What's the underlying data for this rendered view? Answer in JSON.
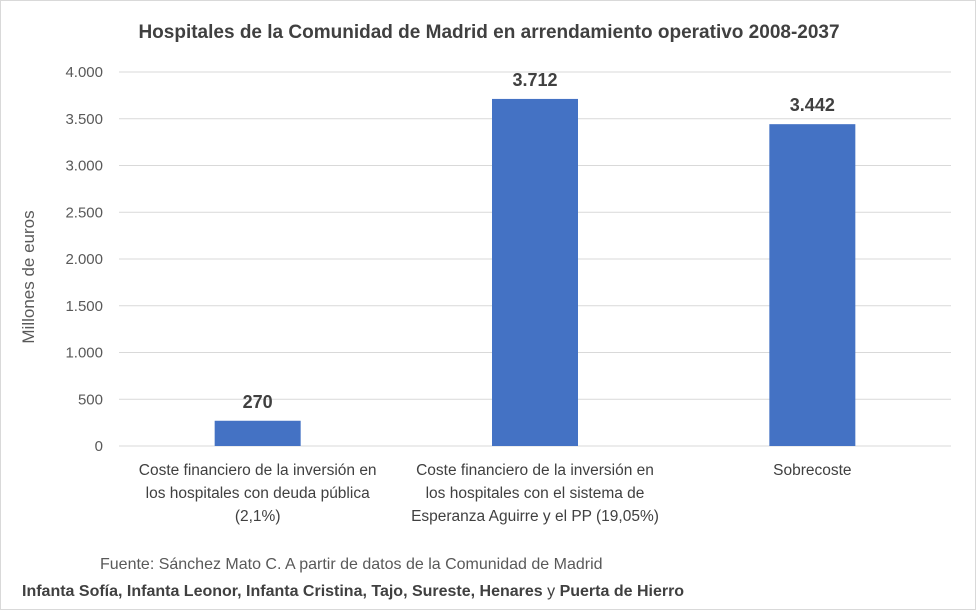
{
  "chart_data": {
    "type": "bar",
    "title": "Hospitales de la Comunidad de Madrid en arrendamiento operativo 2008-2037",
    "ylabel": "Millones de euros",
    "xlabel": "",
    "ylim": [
      0,
      4000
    ],
    "yticks": [
      0,
      500,
      1000,
      1500,
      2000,
      2500,
      3000,
      3500,
      4000
    ],
    "ytick_labels": [
      "0",
      "500",
      "1.000",
      "1.500",
      "2.000",
      "2.500",
      "3.000",
      "3.500",
      "4.000"
    ],
    "grid": true,
    "bar_color": "#4472C4",
    "categories": [
      [
        "Coste financiero de la inversión en",
        "los hospitales con deuda pública",
        "(2,1%)"
      ],
      [
        "Coste financiero de la inversión en",
        "los hospitales con el sistema de",
        "Esperanza Aguirre y el PP (19,05%)"
      ],
      [
        "Sobrecoste"
      ]
    ],
    "values": [
      270,
      3712,
      3442
    ],
    "data_labels": [
      "270",
      "3.712",
      "3.442"
    ]
  },
  "footer": {
    "source": "Fuente: Sánchez Mato C.  A partir de datos de la Comunidad de Madrid",
    "hospitals_prefix": "Infanta Sofía, Infanta Leonor, Infanta Cristina, Tajo, Sureste, Henares ",
    "hospitals_connector": "y",
    "hospitals_suffix": " Puerta de Hierro"
  }
}
